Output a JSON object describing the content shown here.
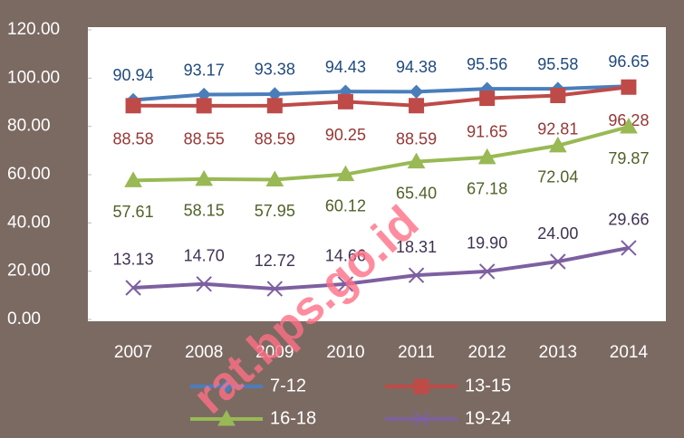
{
  "chart_data": {
    "type": "line",
    "categories": [
      "2007",
      "2008",
      "2009",
      "2010",
      "2011",
      "2012",
      "2013",
      "2014"
    ],
    "series": [
      {
        "name": "7-12",
        "color": "#4a7ebb",
        "label_color": "#1f497d",
        "marker": "diamond",
        "values": [
          90.94,
          93.17,
          93.38,
          94.43,
          94.38,
          95.56,
          95.58,
          96.65
        ],
        "value_labels": [
          "90.94",
          "93.17",
          "93.38",
          "94.43",
          "94.38",
          "95.56",
          "95.58",
          "96.65"
        ]
      },
      {
        "name": "13-15",
        "color": "#be4b48",
        "label_color": "#953735",
        "marker": "square",
        "values": [
          88.58,
          88.55,
          88.59,
          90.25,
          88.59,
          91.65,
          92.81,
          96.28
        ],
        "value_labels": [
          "88.58",
          "88.55",
          "88.59",
          "90.25",
          "88.59",
          "91.65",
          "92.81",
          "96.28"
        ]
      },
      {
        "name": "16-18",
        "color": "#98b954",
        "label_color": "#4f6228",
        "marker": "triangle",
        "values": [
          57.61,
          58.15,
          57.95,
          60.12,
          65.4,
          67.18,
          72.04,
          79.87
        ],
        "value_labels": [
          "57.61",
          "58.15",
          "57.95",
          "60.12",
          "65.40",
          "67.18",
          "72.04",
          "79.87"
        ]
      },
      {
        "name": "19-24",
        "color": "#7d60a0",
        "label_color": "#3f3151",
        "marker": "x",
        "values": [
          13.13,
          14.7,
          12.72,
          14.66,
          18.31,
          19.9,
          24.0,
          29.66
        ],
        "value_labels": [
          "13.13",
          "14.70",
          "12.72",
          "14.66",
          "18.31",
          "19.90",
          "24.00",
          "29.66"
        ]
      }
    ],
    "ylim": [
      0,
      120
    ],
    "yticks": [
      {
        "value": 0,
        "label": "0.00"
      },
      {
        "value": 20,
        "label": "20.00"
      },
      {
        "value": 40,
        "label": "40.00"
      },
      {
        "value": 60,
        "label": "60.00"
      },
      {
        "value": 80,
        "label": "80.00"
      },
      {
        "value": 100,
        "label": "100.00"
      },
      {
        "value": 120,
        "label": "120.00"
      }
    ],
    "background": "#7b6a62",
    "plot_background": "#ffffff",
    "watermark": "rat.bps.go.id"
  }
}
